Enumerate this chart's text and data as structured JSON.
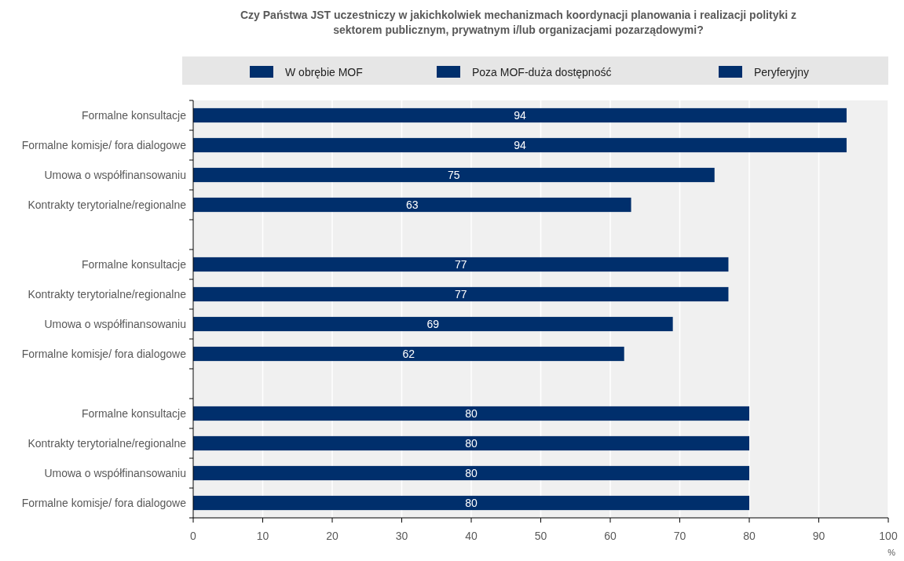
{
  "chart_data": {
    "type": "bar",
    "orientation": "horizontal",
    "title": "Czy Państwa JST uczestniczy w jakichkolwiek mechanizmach koordynacji planowania i realizacji polityki z sektorem publicznym, prywatnym i/lub organizacjami pozarządowymi?",
    "xlabel": "%",
    "categories": [
      "Formalne konsultacje",
      "Formalne komisje/ fora dialogowe",
      "Umowa o współfinansowaniu",
      "Kontrakty terytorialne/regionalne",
      null,
      "Formalne konsultacje",
      "Kontrakty terytorialne/regionalne",
      "Umowa o współfinansowaniu",
      "Formalne komisje/ fora dialogowe",
      null,
      "Formalne konsultacje",
      "Kontrakty terytorialne/regionalne",
      "Umowa o współfinansowaniu",
      "Formalne komisje/ fora dialogowe"
    ],
    "series": [
      {
        "name": "W obrębie MOF",
        "color": "#002f6c",
        "values": [
          94,
          94,
          75,
          63,
          null,
          null,
          null,
          null,
          null,
          null,
          null,
          null,
          null,
          null
        ]
      },
      {
        "name": "Poza MOF-duża dostępność",
        "color": "#002f6c",
        "values": [
          null,
          null,
          null,
          null,
          null,
          77,
          77,
          69,
          62,
          null,
          null,
          null,
          null,
          null
        ]
      },
      {
        "name": "Peryferyjny",
        "color": "#002f6c",
        "values": [
          null,
          null,
          null,
          null,
          null,
          null,
          null,
          null,
          null,
          null,
          80,
          80,
          80,
          80
        ]
      }
    ],
    "xlim": [
      0,
      100
    ],
    "xticks": [
      0,
      10,
      20,
      30,
      40,
      50,
      60,
      70,
      80,
      90,
      100
    ],
    "grid": "x",
    "legend": "top",
    "data_labels": true
  }
}
